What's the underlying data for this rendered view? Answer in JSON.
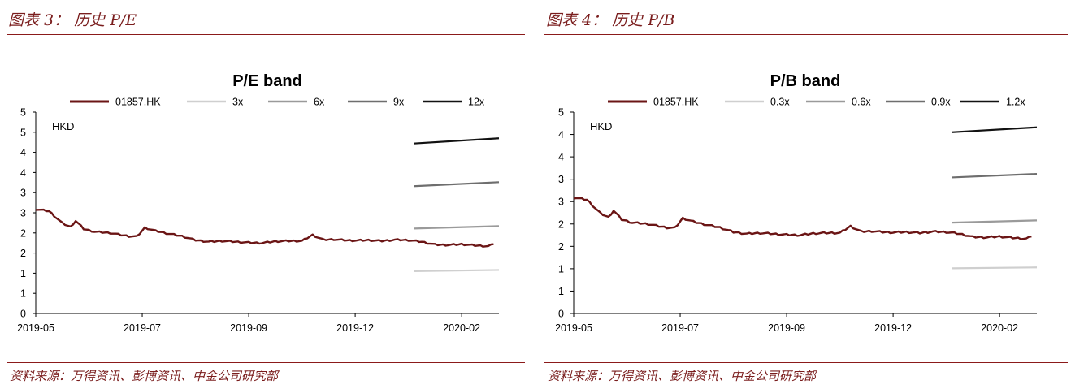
{
  "panels": [
    {
      "fig_title": "图表 3： 历史 P/E",
      "source": "资料来源：万得资讯、彭博资讯、中金公司研究部"
    },
    {
      "fig_title": "图表 4： 历史 P/B",
      "source": "资料来源：万得资讯、彭博资讯、中金公司研究部"
    }
  ],
  "colors": {
    "rule": "#8b1a1a",
    "price": "#6b1515"
  },
  "chart_data": [
    {
      "type": "line",
      "title": "P/E band",
      "unit_label": "HKD",
      "y_tick_labels": [
        "0",
        "1",
        "1",
        "2",
        "2",
        "3",
        "3",
        "4",
        "4",
        "5",
        "5"
      ],
      "ylim": [
        0,
        5
      ],
      "x_tick_labels": [
        "2019-05",
        "2019-07",
        "2019-09",
        "2019-12",
        "2020-02"
      ],
      "x_tick_index": [
        0,
        40,
        80,
        120,
        160
      ],
      "x_count": 175,
      "legend_position": "top",
      "price_series": {
        "name": "01857.HK",
        "color": "#6b1515",
        "points": [
          [
            0,
            2.59
          ],
          [
            5,
            2.54
          ],
          [
            10,
            2.24
          ],
          [
            13,
            2.15
          ],
          [
            15,
            2.3
          ],
          [
            18,
            2.1
          ],
          [
            22,
            2.03
          ],
          [
            28,
            2.0
          ],
          [
            32,
            1.95
          ],
          [
            35,
            1.92
          ],
          [
            38,
            1.91
          ],
          [
            41,
            2.13
          ],
          [
            45,
            2.05
          ],
          [
            50,
            1.98
          ],
          [
            55,
            1.92
          ],
          [
            60,
            1.82
          ],
          [
            65,
            1.78
          ],
          [
            70,
            1.8
          ],
          [
            75,
            1.78
          ],
          [
            80,
            1.76
          ],
          [
            85,
            1.75
          ],
          [
            90,
            1.79
          ],
          [
            95,
            1.8
          ],
          [
            100,
            1.8
          ],
          [
            104,
            1.95
          ],
          [
            108,
            1.83
          ],
          [
            112,
            1.84
          ],
          [
            116,
            1.82
          ],
          [
            120,
            1.81
          ],
          [
            125,
            1.82
          ],
          [
            130,
            1.8
          ],
          [
            135,
            1.83
          ],
          [
            140,
            1.82
          ],
          [
            145,
            1.78
          ],
          [
            150,
            1.71
          ],
          [
            155,
            1.7
          ],
          [
            160,
            1.72
          ],
          [
            165,
            1.69
          ],
          [
            170,
            1.67
          ],
          [
            172,
            1.72
          ]
        ]
      },
      "bands": [
        {
          "name": "3x",
          "color": "#cfcfcf",
          "start": [
            142,
            1.05
          ],
          "end": [
            174,
            1.08
          ]
        },
        {
          "name": "6x",
          "color": "#9a9a9a",
          "start": [
            142,
            2.11
          ],
          "end": [
            174,
            2.17
          ]
        },
        {
          "name": "9x",
          "color": "#6e6e6e",
          "start": [
            142,
            3.16
          ],
          "end": [
            174,
            3.26
          ]
        },
        {
          "name": "12x",
          "color": "#111111",
          "start": [
            142,
            4.22
          ],
          "end": [
            174,
            4.35
          ]
        }
      ]
    },
    {
      "type": "line",
      "title": "P/B band",
      "unit_label": "HKD",
      "y_tick_labels": [
        "0",
        "1",
        "1",
        "2",
        "2",
        "3",
        "3",
        "4",
        "4",
        "5"
      ],
      "ylim": [
        0,
        4.5
      ],
      "x_tick_labels": [
        "2019-05",
        "2019-07",
        "2019-09",
        "2019-12",
        "2020-02"
      ],
      "x_tick_index": [
        0,
        40,
        80,
        120,
        160
      ],
      "x_count": 175,
      "legend_position": "top",
      "price_series": {
        "name": "01857.HK",
        "color": "#6b1515",
        "points": [
          [
            0,
            2.59
          ],
          [
            5,
            2.54
          ],
          [
            10,
            2.24
          ],
          [
            13,
            2.15
          ],
          [
            15,
            2.3
          ],
          [
            18,
            2.1
          ],
          [
            22,
            2.03
          ],
          [
            28,
            2.0
          ],
          [
            32,
            1.95
          ],
          [
            35,
            1.92
          ],
          [
            38,
            1.91
          ],
          [
            41,
            2.13
          ],
          [
            45,
            2.05
          ],
          [
            50,
            1.98
          ],
          [
            55,
            1.92
          ],
          [
            60,
            1.82
          ],
          [
            65,
            1.78
          ],
          [
            70,
            1.8
          ],
          [
            75,
            1.78
          ],
          [
            80,
            1.76
          ],
          [
            85,
            1.75
          ],
          [
            90,
            1.79
          ],
          [
            95,
            1.8
          ],
          [
            100,
            1.8
          ],
          [
            104,
            1.95
          ],
          [
            108,
            1.83
          ],
          [
            112,
            1.84
          ],
          [
            116,
            1.82
          ],
          [
            120,
            1.81
          ],
          [
            125,
            1.82
          ],
          [
            130,
            1.8
          ],
          [
            135,
            1.83
          ],
          [
            140,
            1.82
          ],
          [
            145,
            1.78
          ],
          [
            150,
            1.71
          ],
          [
            155,
            1.7
          ],
          [
            160,
            1.72
          ],
          [
            165,
            1.69
          ],
          [
            170,
            1.67
          ],
          [
            172,
            1.72
          ]
        ]
      },
      "bands": [
        {
          "name": "0.3x",
          "color": "#cfcfcf",
          "start": [
            142,
            1.01
          ],
          "end": [
            174,
            1.03
          ]
        },
        {
          "name": "0.6x",
          "color": "#9a9a9a",
          "start": [
            142,
            2.03
          ],
          "end": [
            174,
            2.08
          ]
        },
        {
          "name": "0.9x",
          "color": "#6e6e6e",
          "start": [
            142,
            3.04
          ],
          "end": [
            174,
            3.12
          ]
        },
        {
          "name": "1.2x",
          "color": "#111111",
          "start": [
            142,
            4.05
          ],
          "end": [
            174,
            4.16
          ]
        }
      ]
    }
  ]
}
